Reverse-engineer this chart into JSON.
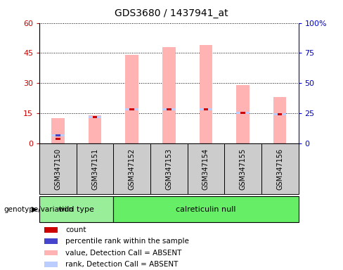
{
  "title": "GDS3680 / 1437941_at",
  "samples": [
    "GSM347150",
    "GSM347151",
    "GSM347152",
    "GSM347153",
    "GSM347154",
    "GSM347155",
    "GSM347156"
  ],
  "pink_bar_values": [
    12.5,
    14.0,
    44.0,
    48.0,
    49.0,
    29.0,
    23.0
  ],
  "blue_rank_values": [
    4.0,
    13.0,
    17.0,
    17.0,
    17.0,
    15.0,
    14.5
  ],
  "red_count_values": [
    2.0,
    13.0,
    17.0,
    17.0,
    17.0,
    15.0,
    14.5
  ],
  "ylim_left": [
    0,
    60
  ],
  "ylim_right": [
    0,
    100
  ],
  "yticks_left": [
    0,
    15,
    30,
    45,
    60
  ],
  "yticks_right": [
    0,
    25,
    50,
    75,
    100
  ],
  "ytick_labels_right": [
    "0",
    "25",
    "50",
    "75",
    "100%"
  ],
  "ytick_labels_left": [
    "0",
    "15",
    "30",
    "45",
    "60"
  ],
  "pink_color": "#FFB3B3",
  "blue_color": "#4444CC",
  "red_color": "#CC0000",
  "light_blue_color": "#BBCCFF",
  "sample_box_color": "#CCCCCC",
  "groups": [
    {
      "label": "wild type",
      "start": 0,
      "end": 1,
      "color": "#99EE99"
    },
    {
      "label": "calreticulin null",
      "start": 2,
      "end": 6,
      "color": "#66EE66"
    }
  ],
  "group_label": "genotype/variation",
  "legend_items": [
    {
      "color": "#CC0000",
      "label": "count"
    },
    {
      "color": "#4444CC",
      "label": "percentile rank within the sample"
    },
    {
      "color": "#FFB3B3",
      "label": "value, Detection Call = ABSENT"
    },
    {
      "color": "#BBCCFF",
      "label": "rank, Detection Call = ABSENT"
    }
  ],
  "axis_left_color": "#CC0000",
  "axis_right_color": "#0000CC",
  "bar_width": 0.35
}
